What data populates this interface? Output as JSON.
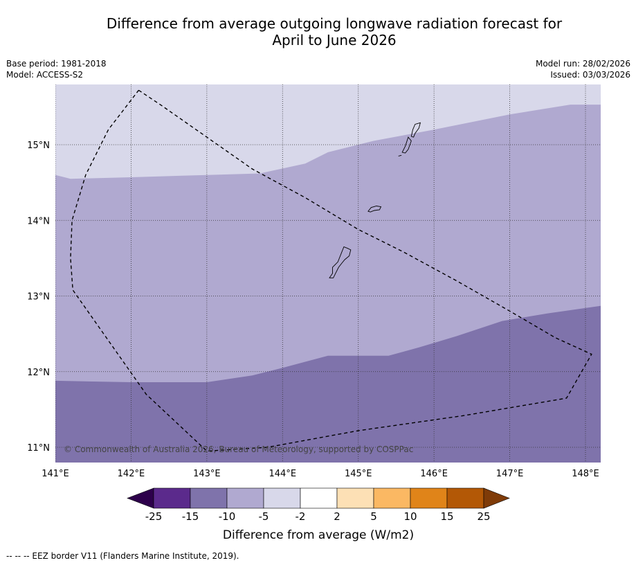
{
  "title": {
    "line1": "Difference from average outgoing longwave radiation forecast for",
    "line2": "April to June 2026"
  },
  "info_left": {
    "base_period": "Base period: 1981-2018",
    "model": "Model: ACCESS-S2"
  },
  "info_right": {
    "model_run": "Model run: 28/02/2026",
    "issued": "Issued: 03/03/2026"
  },
  "map": {
    "lon_range": [
      141.0,
      148.2
    ],
    "lat_range": [
      10.8,
      15.8
    ],
    "lon_ticks": [
      {
        "value": 141,
        "label": "141°E"
      },
      {
        "value": 142,
        "label": "142°E"
      },
      {
        "value": 143,
        "label": "143°E"
      },
      {
        "value": 144,
        "label": "144°E"
      },
      {
        "value": 145,
        "label": "145°E"
      },
      {
        "value": 146,
        "label": "146°E"
      },
      {
        "value": 147,
        "label": "147°E"
      },
      {
        "value": 148,
        "label": "148°E"
      }
    ],
    "lat_ticks": [
      {
        "value": 11,
        "label": "11°N"
      },
      {
        "value": 12,
        "label": "12°N"
      },
      {
        "value": 13,
        "label": "13°N"
      },
      {
        "value": 14,
        "label": "14°N"
      },
      {
        "value": 15,
        "label": "15°N"
      }
    ],
    "zones": [
      {
        "range": "-5 to -2",
        "color": "#d8d8ea",
        "boundary_lower": [
          [
            141.0,
            14.6
          ],
          [
            141.2,
            14.55
          ],
          [
            142.0,
            14.57
          ],
          [
            143.0,
            14.6
          ],
          [
            143.7,
            14.62
          ],
          [
            144.3,
            14.75
          ],
          [
            144.6,
            14.9
          ],
          [
            145.2,
            15.05
          ],
          [
            146.0,
            15.2
          ],
          [
            147.0,
            15.4
          ],
          [
            147.8,
            15.53
          ],
          [
            148.2,
            15.53
          ]
        ]
      },
      {
        "range": "-10 to -5",
        "color": "#b0a9d0",
        "boundary_lower": [
          [
            141.0,
            11.88
          ],
          [
            141.5,
            11.87
          ],
          [
            142.0,
            11.86
          ],
          [
            142.5,
            11.86
          ],
          [
            143.0,
            11.86
          ],
          [
            143.6,
            11.95
          ],
          [
            144.0,
            12.05
          ],
          [
            144.6,
            12.21
          ],
          [
            145.0,
            12.21
          ],
          [
            145.4,
            12.21
          ],
          [
            145.8,
            12.32
          ],
          [
            146.3,
            12.47
          ],
          [
            146.9,
            12.67
          ],
          [
            147.5,
            12.77
          ],
          [
            148.2,
            12.87
          ]
        ]
      },
      {
        "range": "-15 to -10",
        "color": "#7f73ab"
      }
    ],
    "islands": [
      {
        "name": "Guam",
        "coords": [
          [
            144.62,
            13.24
          ],
          [
            144.66,
            13.3
          ],
          [
            144.66,
            13.38
          ],
          [
            144.73,
            13.45
          ],
          [
            144.77,
            13.55
          ],
          [
            144.81,
            13.65
          ],
          [
            144.86,
            13.63
          ],
          [
            144.9,
            13.61
          ],
          [
            144.88,
            13.53
          ],
          [
            144.82,
            13.48
          ],
          [
            144.78,
            13.43
          ],
          [
            144.74,
            13.38
          ],
          [
            144.7,
            13.3
          ],
          [
            144.67,
            13.24
          ]
        ]
      },
      {
        "name": "Rota",
        "coords": [
          [
            145.13,
            14.12
          ],
          [
            145.17,
            14.17
          ],
          [
            145.24,
            14.19
          ],
          [
            145.3,
            14.18
          ],
          [
            145.28,
            14.14
          ],
          [
            145.21,
            14.13
          ],
          [
            145.16,
            14.11
          ]
        ]
      },
      {
        "name": "Tinian",
        "coords": [
          [
            145.58,
            14.9
          ],
          [
            145.62,
            14.98
          ],
          [
            145.66,
            15.1
          ],
          [
            145.7,
            15.05
          ],
          [
            145.66,
            14.94
          ],
          [
            145.62,
            14.89
          ]
        ]
      },
      {
        "name": "Saipan",
        "coords": [
          [
            145.7,
            15.11
          ],
          [
            145.72,
            15.2
          ],
          [
            145.75,
            15.27
          ],
          [
            145.82,
            15.29
          ],
          [
            145.8,
            15.22
          ],
          [
            145.75,
            15.15
          ],
          [
            145.73,
            15.1
          ]
        ]
      },
      {
        "name": "Aguijan",
        "coords": [
          [
            145.53,
            14.85
          ],
          [
            145.57,
            14.86
          ]
        ]
      }
    ],
    "eez": [
      [
        142.1,
        15.72
      ],
      [
        142.4,
        15.52
      ],
      [
        143.0,
        15.1
      ],
      [
        143.6,
        14.68
      ],
      [
        144.3,
        14.3
      ],
      [
        145.0,
        13.88
      ],
      [
        145.6,
        13.58
      ],
      [
        146.3,
        13.2
      ],
      [
        147.0,
        12.8
      ],
      [
        147.6,
        12.45
      ],
      [
        148.08,
        12.23
      ],
      [
        147.75,
        11.65
      ],
      [
        146.4,
        11.42
      ],
      [
        145.0,
        11.22
      ],
      [
        143.8,
        11.0
      ],
      [
        143.0,
        10.95
      ],
      [
        142.2,
        11.7
      ],
      [
        141.23,
        13.08
      ],
      [
        141.2,
        13.5
      ],
      [
        141.22,
        14.0
      ],
      [
        141.4,
        14.6
      ],
      [
        141.7,
        15.2
      ],
      [
        142.1,
        15.72
      ]
    ],
    "copyright": "© Commonwealth of Australia 2026, Bureau of Meteorology, supported by COSPPac"
  },
  "legend": {
    "title": "Difference from average (W/m2)",
    "bins": [
      {
        "color": "#5b2a8c"
      },
      {
        "color": "#7f73ab"
      },
      {
        "color": "#b0a9d0"
      },
      {
        "color": "#d8d8ea"
      },
      {
        "color": "#ffffff"
      },
      {
        "color": "#fde0b5"
      },
      {
        "color": "#fbb863"
      },
      {
        "color": "#e08419"
      },
      {
        "color": "#b35806"
      }
    ],
    "low_extend_color": "#2d004b",
    "high_extend_color": "#7f3b08",
    "ticks": [
      "-25",
      "-15",
      "-10",
      "-5",
      "-2",
      "2",
      "5",
      "10",
      "15",
      "25"
    ]
  },
  "footer": {
    "eez_note": "--  --  -- EEZ border V11 (Flanders Marine Institute, 2019)."
  }
}
